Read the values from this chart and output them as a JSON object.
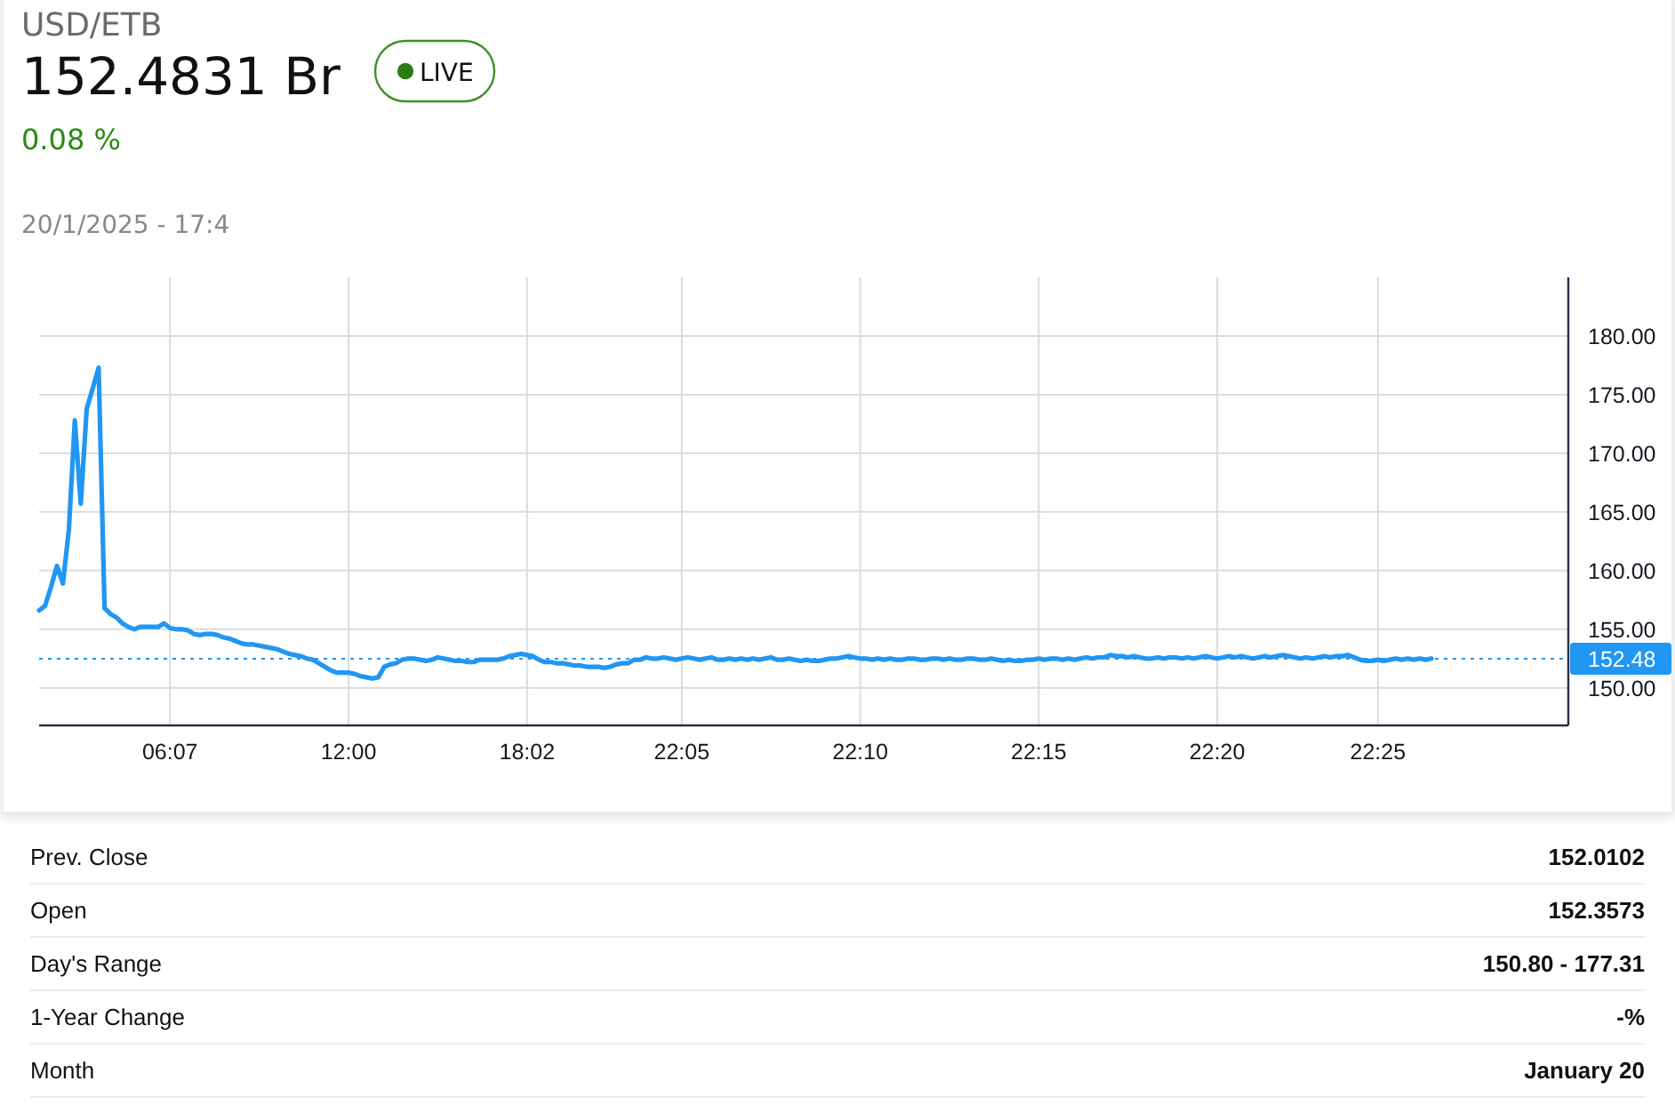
{
  "chart_data": [
    {
      "type": "line",
      "title": "USD/ETB",
      "subtitle": "152.4831 Br",
      "annotations": [
        "LIVE",
        "0.08 %",
        "20/1/2025 - 17:4"
      ],
      "categories": [
        null,
        null,
        null,
        null,
        null,
        null,
        null,
        null,
        null,
        null,
        null,
        null,
        null,
        null,
        null,
        null,
        null,
        null,
        null,
        null,
        null,
        null,
        "06:07",
        null,
        null,
        null,
        null,
        null,
        null,
        null,
        null,
        null,
        null,
        null,
        null,
        null,
        null,
        null,
        null,
        null,
        null,
        null,
        null,
        null,
        null,
        null,
        null,
        null,
        null,
        null,
        null,
        null,
        "12:00",
        null,
        null,
        null,
        null,
        null,
        null,
        null,
        null,
        null,
        null,
        null,
        null,
        null,
        null,
        null,
        null,
        null,
        null,
        null,
        null,
        null,
        null,
        null,
        null,
        null,
        null,
        null,
        null,
        null,
        "18:02",
        null,
        null,
        null,
        null,
        null,
        null,
        null,
        null,
        null,
        null,
        null,
        null,
        null,
        null,
        null,
        null,
        null,
        null,
        null,
        null,
        null,
        null,
        null,
        null,
        null,
        "22:05",
        null,
        null,
        null,
        null,
        null,
        null,
        null,
        null,
        null,
        null,
        null,
        null,
        null,
        null,
        null,
        null,
        null,
        null,
        null,
        null,
        null,
        null,
        null,
        null,
        null,
        null,
        null,
        null,
        null,
        "22:10",
        null,
        null,
        null,
        null,
        null,
        null,
        null,
        null,
        null,
        null,
        null,
        null,
        null,
        null,
        null,
        null,
        null,
        null,
        null,
        null,
        null,
        null,
        null,
        null,
        null,
        null,
        null,
        null,
        null,
        "22:15",
        null,
        null,
        null,
        null,
        null,
        null,
        null,
        null,
        null,
        null,
        null,
        null,
        null,
        null,
        null,
        null,
        null,
        null,
        null,
        null,
        null,
        null,
        null,
        null,
        null,
        null,
        null,
        null,
        null,
        "22:20",
        null,
        null,
        null,
        null,
        null,
        null,
        null,
        null,
        null,
        null,
        null,
        null,
        null,
        null,
        null,
        null,
        null,
        null,
        null,
        null,
        null,
        null,
        null,
        null,
        null,
        null,
        "22:25",
        null,
        null,
        null,
        null,
        null,
        null,
        null,
        null,
        null,
        null,
        null,
        null,
        null,
        null,
        null,
        null,
        null,
        null,
        null,
        null,
        null,
        null,
        null,
        null,
        null,
        null,
        null,
        null,
        null,
        null,
        null,
        null
      ],
      "values": [
        156.6,
        157.0,
        158.6,
        160.4,
        158.9,
        163.5,
        172.8,
        165.7,
        173.8,
        175.5,
        177.3,
        156.8,
        156.3,
        156.0,
        155.5,
        155.2,
        155.0,
        155.2,
        155.2,
        155.2,
        155.2,
        155.5,
        155.1,
        155.0,
        155.0,
        154.9,
        154.6,
        154.5,
        154.6,
        154.6,
        154.5,
        154.3,
        154.2,
        154.0,
        153.8,
        153.7,
        153.7,
        153.6,
        153.5,
        153.4,
        153.3,
        153.1,
        152.9,
        152.8,
        152.7,
        152.5,
        152.4,
        152.1,
        151.8,
        151.5,
        151.3,
        151.3,
        151.3,
        151.2,
        151.0,
        150.9,
        150.8,
        150.9,
        151.8,
        152.0,
        152.1,
        152.4,
        152.5,
        152.5,
        152.4,
        152.3,
        152.4,
        152.6,
        152.5,
        152.4,
        152.3,
        152.3,
        152.2,
        152.2,
        152.4,
        152.4,
        152.4,
        152.4,
        152.5,
        152.7,
        152.8,
        152.9,
        152.8,
        152.7,
        152.4,
        152.2,
        152.2,
        152.1,
        152.1,
        152.0,
        151.9,
        151.9,
        151.8,
        151.8,
        151.8,
        151.7,
        151.8,
        152.0,
        152.1,
        152.1,
        152.4,
        152.4,
        152.6,
        152.5,
        152.5,
        152.6,
        152.5,
        152.4,
        152.5,
        152.6,
        152.5,
        152.4,
        152.5,
        152.6,
        152.4,
        152.4,
        152.5,
        152.4,
        152.5,
        152.4,
        152.5,
        152.4,
        152.5,
        152.6,
        152.4,
        152.4,
        152.5,
        152.4,
        152.3,
        152.4,
        152.3,
        152.3,
        152.4,
        152.5,
        152.5,
        152.6,
        152.7,
        152.6,
        152.5,
        152.5,
        152.4,
        152.5,
        152.4,
        152.5,
        152.4,
        152.4,
        152.5,
        152.5,
        152.4,
        152.4,
        152.5,
        152.5,
        152.4,
        152.5,
        152.4,
        152.4,
        152.5,
        152.5,
        152.4,
        152.4,
        152.5,
        152.4,
        152.3,
        152.4,
        152.3,
        152.3,
        152.4,
        152.4,
        152.5,
        152.4,
        152.5,
        152.5,
        152.4,
        152.5,
        152.4,
        152.5,
        152.6,
        152.5,
        152.6,
        152.6,
        152.8,
        152.7,
        152.7,
        152.6,
        152.7,
        152.6,
        152.5,
        152.5,
        152.6,
        152.5,
        152.6,
        152.6,
        152.5,
        152.6,
        152.5,
        152.6,
        152.7,
        152.6,
        152.5,
        152.6,
        152.7,
        152.6,
        152.7,
        152.6,
        152.5,
        152.6,
        152.7,
        152.6,
        152.7,
        152.8,
        152.7,
        152.6,
        152.5,
        152.6,
        152.5,
        152.6,
        152.7,
        152.6,
        152.7,
        152.7,
        152.8,
        152.6,
        152.4,
        152.3,
        152.3,
        152.4,
        152.3,
        152.4,
        152.5,
        152.4,
        152.5,
        152.4,
        152.5,
        152.4,
        152.5,
        null,
        null,
        null,
        null,
        null,
        null,
        null,
        null,
        null,
        null,
        null,
        null,
        null,
        null,
        null,
        null,
        null,
        null,
        null,
        null,
        null,
        null,
        null
      ],
      "color": "#2196f3",
      "ylim": [
        146.8,
        185
      ],
      "yticks": [
        {
          "value": 150,
          "label": "150.00"
        },
        {
          "value": 155,
          "label": "155.00"
        },
        {
          "value": 160,
          "label": "160.00"
        },
        {
          "value": 165,
          "label": "165.00"
        },
        {
          "value": 170,
          "label": "170.00"
        },
        {
          "value": 175,
          "label": "175.00"
        },
        {
          "value": 180,
          "label": "180.00"
        }
      ],
      "grid": true,
      "ref_lines": [
        {
          "axis": "y",
          "value": 152.48,
          "label": "152.48",
          "color": "#2196f3",
          "line_style": "dotted"
        }
      ]
    },
    {
      "type": "other",
      "annotations": [
        "Prev. Close",
        "152.0102",
        "Open",
        "152.3573",
        "Day's Range",
        "150.80 - 177.31",
        "1-Year Change",
        "-%",
        "Month",
        "January 20"
      ]
    }
  ]
}
